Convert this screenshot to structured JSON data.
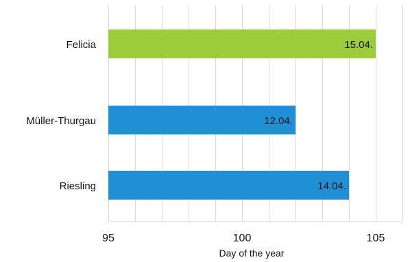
{
  "chart_data": {
    "type": "bar",
    "orientation": "horizontal",
    "categories": [
      "Felicia",
      "Müller-Thurgau",
      "Riesling"
    ],
    "values": [
      105,
      102,
      104
    ],
    "value_labels": [
      "15.04.",
      "12.04.",
      "14.04."
    ],
    "colors": [
      "#9ccb3b",
      "#1f8fd6",
      "#1f8fd6"
    ],
    "xlabel": "Day of the year",
    "ylabel": "",
    "xlim": [
      95,
      106
    ],
    "xticks": [
      95,
      100,
      105
    ],
    "xtick_labels": [
      "95",
      "100",
      "105"
    ],
    "grid": true
  }
}
